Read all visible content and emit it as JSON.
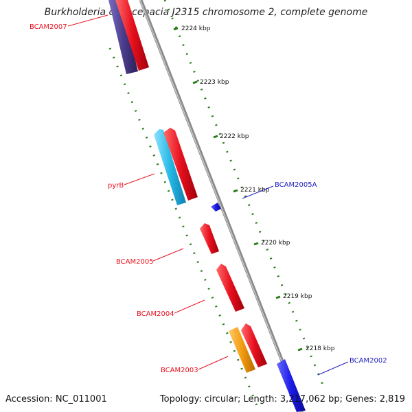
{
  "title": "Burkholderia cenocepacia J2315 chromosome 2, complete genome",
  "accession": "Accession: NC_011001",
  "stats": "Topology: circular; Length: 3,217,062 bp; Genes: 2,819",
  "ticks": [
    {
      "label": "2224 kbp"
    },
    {
      "label": "2223 kbp"
    },
    {
      "label": "2222 kbp"
    },
    {
      "label": "2221 kbp"
    },
    {
      "label": "2220 kbp"
    },
    {
      "label": "2219 kbp"
    },
    {
      "label": "2218 kbp"
    }
  ],
  "genes": [
    {
      "name": "BCAM2007",
      "color": "#e8101e"
    },
    {
      "name": "pyrB",
      "color": "#e8101e"
    },
    {
      "name": "BCAM2005A",
      "color": "#1d1dbf"
    },
    {
      "name": "BCAM2005",
      "color": "#e8101e"
    },
    {
      "name": "BCAM2004",
      "color": "#e8101e"
    },
    {
      "name": "BCAM2003",
      "color": "#e8101e"
    },
    {
      "name": "BCAM2002",
      "color": "#1d1dbf"
    }
  ],
  "colors": {
    "cds_forward": "#e8101e",
    "cds_reverse_dark": "#4b3c8c",
    "cds_reverse_cyan": "#27b9e6",
    "cds_reverse_orange": "#f39c12",
    "cds_reverse_blue": "#1a1ae6",
    "backbone": "#8a8a8a",
    "tick_dots": "#2a7a1a"
  }
}
